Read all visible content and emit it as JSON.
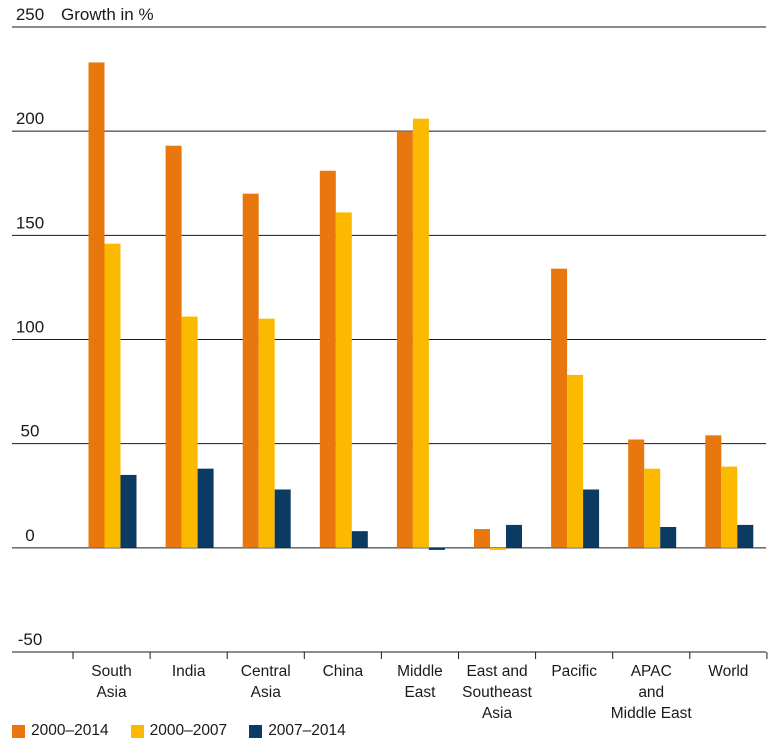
{
  "chart_data": {
    "type": "bar",
    "ylabel": "Growth in %",
    "ylim": [
      -50,
      250
    ],
    "yticks": [
      -50,
      0,
      50,
      100,
      150,
      200,
      250
    ],
    "grid": true,
    "legend_position": "bottom-left",
    "categories": [
      "South Asia",
      "India",
      "Central Asia",
      "China",
      "Middle East",
      "East and Southeast Asia",
      "Pacific",
      "APAC and Middle East",
      "World"
    ],
    "category_lines": [
      [
        "South",
        "Asia"
      ],
      [
        "India"
      ],
      [
        "Central",
        "Asia"
      ],
      [
        "China"
      ],
      [
        "Middle",
        "East"
      ],
      [
        "East and",
        "Southeast",
        "Asia"
      ],
      [
        "Pacific"
      ],
      [
        "APAC",
        "and",
        "Middle East"
      ],
      [
        "World"
      ]
    ],
    "series": [
      {
        "name": "2000–2014",
        "color": "#E8770D",
        "values": [
          233,
          193,
          170,
          181,
          200,
          9,
          134,
          52,
          54
        ]
      },
      {
        "name": "2000–2007",
        "color": "#FBBA00",
        "values": [
          146,
          111,
          110,
          161,
          206,
          -1,
          83,
          38,
          39
        ]
      },
      {
        "name": "2007–2014",
        "color": "#0B3A62",
        "values": [
          35,
          38,
          28,
          8,
          -1,
          11,
          28,
          10,
          11
        ]
      }
    ]
  }
}
